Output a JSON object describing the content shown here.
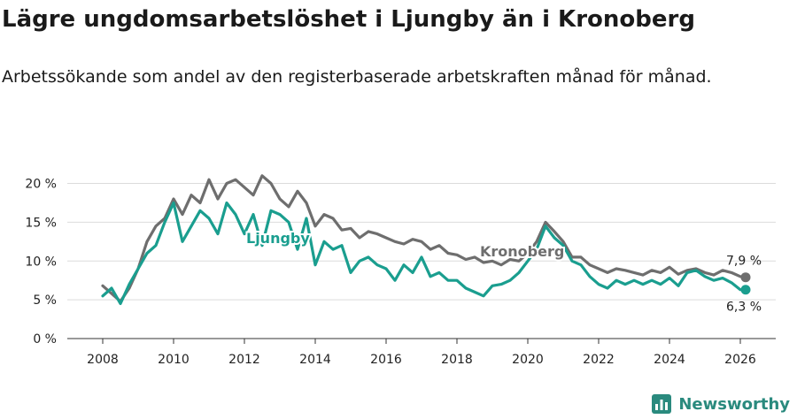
{
  "title": "Lägre ungdomsarbetslöshet i Ljungby än i Kronoberg",
  "subtitle": "Arbetssökande som andel av den registerbaserade arbetskraften månad för månad.",
  "brand": {
    "name": "Newsworthy",
    "color": "#2a8a7e"
  },
  "chart_data": {
    "type": "line",
    "title": "Lägre ungdomsarbetslöshet i Ljungby än i Kronoberg",
    "xlabel": "",
    "ylabel": "",
    "ylim": [
      0,
      22
    ],
    "xlim": [
      2007.0,
      2027.0
    ],
    "y_ticks": [
      0,
      5,
      10,
      15,
      20
    ],
    "y_tick_labels": [
      "0 %",
      "5 %",
      "10 %",
      "15 %",
      "20 %"
    ],
    "x_ticks": [
      2008,
      2010,
      2012,
      2014,
      2016,
      2018,
      2020,
      2022,
      2024,
      2026
    ],
    "x_tick_labels": [
      "2008",
      "2010",
      "2012",
      "2014",
      "2016",
      "2018",
      "2020",
      "2022",
      "2024",
      "2026"
    ],
    "grid": true,
    "series": [
      {
        "name": "Kronoberg",
        "color": "#6e6e6e",
        "end_label": "7,9 %",
        "x": [
          2008.0,
          2008.25,
          2008.5,
          2008.75,
          2009.0,
          2009.25,
          2009.5,
          2009.75,
          2010.0,
          2010.25,
          2010.5,
          2010.75,
          2011.0,
          2011.25,
          2011.5,
          2011.75,
          2012.0,
          2012.25,
          2012.5,
          2012.75,
          2013.0,
          2013.25,
          2013.5,
          2013.75,
          2014.0,
          2014.25,
          2014.5,
          2014.75,
          2015.0,
          2015.25,
          2015.5,
          2015.75,
          2016.0,
          2016.25,
          2016.5,
          2016.75,
          2017.0,
          2017.25,
          2017.5,
          2017.75,
          2018.0,
          2018.25,
          2018.5,
          2018.75,
          2019.0,
          2019.25,
          2019.5,
          2019.75,
          2020.0,
          2020.25,
          2020.5,
          2020.75,
          2021.0,
          2021.25,
          2021.5,
          2021.75,
          2022.0,
          2022.25,
          2022.5,
          2022.75,
          2023.0,
          2023.25,
          2023.5,
          2023.75,
          2024.0,
          2024.25,
          2024.5,
          2024.75,
          2025.0,
          2025.25,
          2025.5,
          2025.75,
          2026.0,
          2026.15
        ],
        "values": [
          6.8,
          5.8,
          4.8,
          6.5,
          9.0,
          12.5,
          14.5,
          15.5,
          18.0,
          16.0,
          18.5,
          17.5,
          20.5,
          18.0,
          20.0,
          20.5,
          19.5,
          18.5,
          21.0,
          20.0,
          18.0,
          17.0,
          19.0,
          17.5,
          14.5,
          16.0,
          15.5,
          14.0,
          14.2,
          13.0,
          13.8,
          13.5,
          13.0,
          12.5,
          12.2,
          12.8,
          12.5,
          11.5,
          12.0,
          11.0,
          10.8,
          10.2,
          10.5,
          9.8,
          10.0,
          9.5,
          10.2,
          10.0,
          11.0,
          12.5,
          15.0,
          13.8,
          12.5,
          10.5,
          10.5,
          9.5,
          9.0,
          8.5,
          9.0,
          8.8,
          8.5,
          8.2,
          8.8,
          8.5,
          9.2,
          8.3,
          8.8,
          9.0,
          8.5,
          8.2,
          8.8,
          8.5,
          8.0,
          7.9
        ]
      },
      {
        "name": "Ljungby",
        "color": "#1a9e8f",
        "end_label": "6,3 %",
        "x": [
          2008.0,
          2008.25,
          2008.5,
          2008.75,
          2009.0,
          2009.25,
          2009.5,
          2009.75,
          2010.0,
          2010.25,
          2010.5,
          2010.75,
          2011.0,
          2011.25,
          2011.5,
          2011.75,
          2012.0,
          2012.25,
          2012.5,
          2012.75,
          2013.0,
          2013.25,
          2013.5,
          2013.75,
          2014.0,
          2014.25,
          2014.5,
          2014.75,
          2015.0,
          2015.25,
          2015.5,
          2015.75,
          2016.0,
          2016.25,
          2016.5,
          2016.75,
          2017.0,
          2017.25,
          2017.5,
          2017.75,
          2018.0,
          2018.25,
          2018.5,
          2018.75,
          2019.0,
          2019.25,
          2019.5,
          2019.75,
          2020.0,
          2020.25,
          2020.5,
          2020.75,
          2021.0,
          2021.25,
          2021.5,
          2021.75,
          2022.0,
          2022.25,
          2022.5,
          2022.75,
          2023.0,
          2023.25,
          2023.5,
          2023.75,
          2024.0,
          2024.25,
          2024.5,
          2024.75,
          2025.0,
          2025.25,
          2025.5,
          2025.75,
          2026.0,
          2026.15
        ],
        "values": [
          5.5,
          6.5,
          4.5,
          7.0,
          9.0,
          11.0,
          12.0,
          15.0,
          17.5,
          12.5,
          14.5,
          16.5,
          15.5,
          13.5,
          17.5,
          16.0,
          13.5,
          16.0,
          12.0,
          16.5,
          16.0,
          15.0,
          11.5,
          15.5,
          9.5,
          12.5,
          11.5,
          12.0,
          8.5,
          10.0,
          10.5,
          9.5,
          9.0,
          7.5,
          9.5,
          8.5,
          10.5,
          8.0,
          8.5,
          7.5,
          7.5,
          6.5,
          6.0,
          5.5,
          6.8,
          7.0,
          7.5,
          8.5,
          10.0,
          11.5,
          14.5,
          13.0,
          12.0,
          10.0,
          9.5,
          8.0,
          7.0,
          6.5,
          7.5,
          7.0,
          7.5,
          7.0,
          7.5,
          7.0,
          7.8,
          6.8,
          8.5,
          8.8,
          8.0,
          7.5,
          7.8,
          7.2,
          6.3,
          6.3
        ]
      }
    ]
  }
}
